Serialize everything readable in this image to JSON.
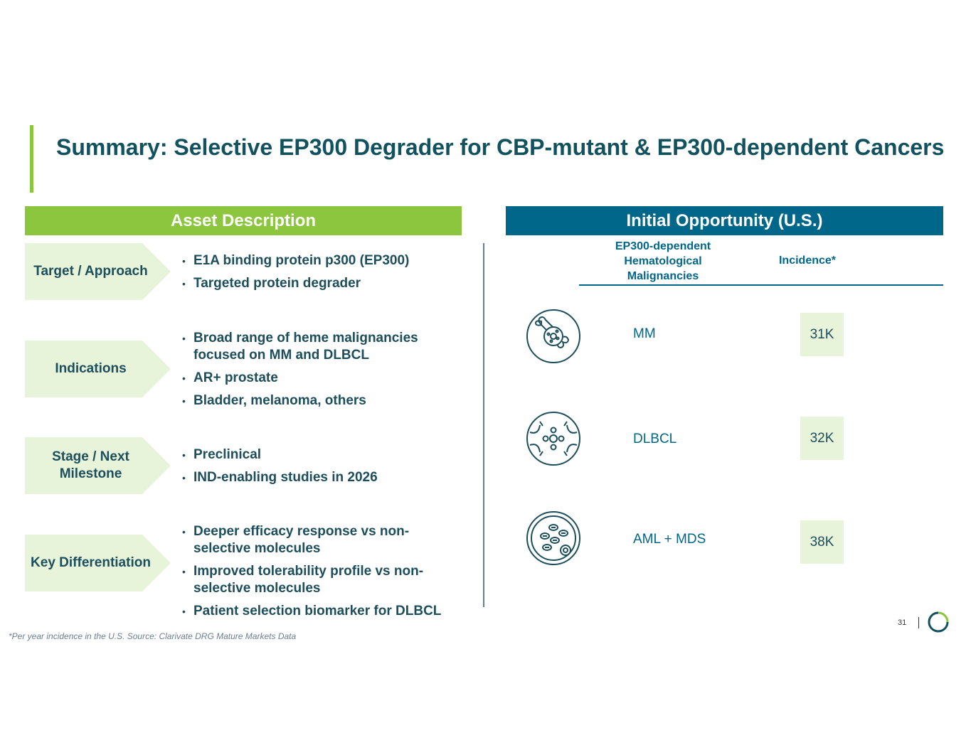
{
  "title": "Summary: Selective EP300 Degrader for CBP-mutant & EP300-dependent Cancers",
  "left_header": "Asset Description",
  "right_header": "Initial Opportunity (U.S.)",
  "rows": [
    {
      "label": "Target / Approach",
      "bullets": [
        "E1A binding protein p300 (EP300)",
        "Targeted protein degrader"
      ]
    },
    {
      "label": "Indications",
      "bullets": [
        "Broad range of heme malignancies focused on MM and DLBCL",
        "AR+ prostate",
        "Bladder, melanoma, others"
      ]
    },
    {
      "label": "Stage / Next Milestone",
      "bullets": [
        "Preclinical",
        "IND-enabling studies in 2026"
      ]
    },
    {
      "label": "Key Differentiation",
      "bullets": [
        "Deeper efficacy response vs non-selective molecules",
        "Improved tolerability profile vs non-selective molecules",
        "Patient selection biomarker for DLBCL"
      ]
    }
  ],
  "table": {
    "col1": "EP300-dependent Hematological Malignancies",
    "col2": "Incidence*",
    "items": [
      {
        "icon": "bone-cell-icon",
        "name": "MM",
        "value": "31K"
      },
      {
        "icon": "lymphoma-cell-icon",
        "name": "DLBCL",
        "value": "32K"
      },
      {
        "icon": "blood-cells-icon",
        "name": "AML + MDS",
        "value": "38K"
      }
    ]
  },
  "footnote": "*Per year incidence in the U.S. Source: Clarivate DRG Mature Markets Data",
  "page_number": "31",
  "colors": {
    "green": "#8cc63f",
    "blue": "#00678a",
    "light_green": "#e8f4da",
    "text": "#1d4e5c"
  }
}
